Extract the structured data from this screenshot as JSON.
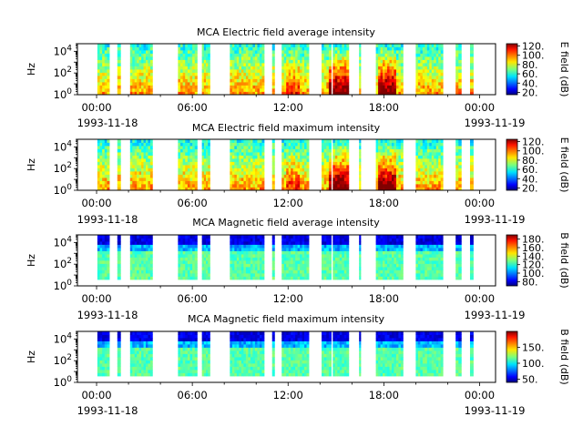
{
  "chart_data": [
    {
      "type": "heatmap",
      "title": "MCA  Electric field average intensity",
      "ylabel": "Hz",
      "y_scale": "log",
      "y_ticks": [
        {
          "base": "10",
          "exp": "0",
          "value": 1
        },
        {
          "base": "10",
          "exp": "2",
          "value": 100
        },
        {
          "base": "10",
          "exp": "4",
          "value": 10000
        }
      ],
      "x_ticks": [
        "00:00",
        "06:00",
        "12:00",
        "18:00",
        "00:00"
      ],
      "x_date_start": "1993-11-18",
      "x_date_end": "1993-11-19",
      "colorbar": {
        "label": "E field (dB)",
        "min": 15,
        "max": 125,
        "ticks": [
          "20.",
          "40.",
          "60.",
          "80.",
          "100.",
          "120."
        ],
        "tick_values": [
          20,
          40,
          60,
          80,
          100,
          120
        ]
      },
      "kind": "electric",
      "seed": 11
    },
    {
      "type": "heatmap",
      "title": "MCA  Electric field maximum intensity",
      "ylabel": "Hz",
      "y_scale": "log",
      "y_ticks": [
        {
          "base": "10",
          "exp": "0",
          "value": 1
        },
        {
          "base": "10",
          "exp": "2",
          "value": 100
        },
        {
          "base": "10",
          "exp": "4",
          "value": 10000
        }
      ],
      "x_ticks": [
        "00:00",
        "06:00",
        "12:00",
        "18:00",
        "00:00"
      ],
      "x_date_start": "1993-11-18",
      "x_date_end": "1993-11-19",
      "colorbar": {
        "label": "E field (dB)",
        "min": 15,
        "max": 125,
        "ticks": [
          "20.",
          "40.",
          "60.",
          "80.",
          "100.",
          "120."
        ],
        "tick_values": [
          20,
          40,
          60,
          80,
          100,
          120
        ]
      },
      "kind": "electric",
      "seed": 23
    },
    {
      "type": "heatmap",
      "title": "MCA  Magnetic field average intensity",
      "ylabel": "Hz",
      "y_scale": "log",
      "y_ticks": [
        {
          "base": "10",
          "exp": "0",
          "value": 1
        },
        {
          "base": "10",
          "exp": "2",
          "value": 100
        },
        {
          "base": "10",
          "exp": "4",
          "value": 10000
        }
      ],
      "x_ticks": [
        "00:00",
        "06:00",
        "12:00",
        "18:00",
        "00:00"
      ],
      "x_date_start": "1993-11-18",
      "x_date_end": "1993-11-19",
      "colorbar": {
        "label": "B field (dB)",
        "min": 70,
        "max": 190,
        "ticks": [
          "80.",
          "100.",
          "120.",
          "140.",
          "160.",
          "180."
        ],
        "tick_values": [
          80,
          100,
          120,
          140,
          160,
          180
        ]
      },
      "kind": "magnetic",
      "seed": 37
    },
    {
      "type": "heatmap",
      "title": "MCA  Magnetic field maximum intensity",
      "ylabel": "Hz",
      "y_scale": "log",
      "y_ticks": [
        {
          "base": "10",
          "exp": "0",
          "value": 1
        },
        {
          "base": "10",
          "exp": "2",
          "value": 100
        },
        {
          "base": "10",
          "exp": "4",
          "value": 10000
        }
      ],
      "x_ticks": [
        "00:00",
        "06:00",
        "12:00",
        "18:00",
        "00:00"
      ],
      "x_date_start": "1993-11-18",
      "x_date_end": "1993-11-19",
      "colorbar": {
        "label": "B field (dB)",
        "min": 40,
        "max": 200,
        "ticks": [
          "50.",
          "100.",
          "150."
        ],
        "tick_values": [
          50,
          100,
          150
        ]
      },
      "kind": "magnetic",
      "seed": 53
    }
  ],
  "data_intervals_hours": [
    [
      0.05,
      0.8
    ],
    [
      1.3,
      1.5
    ],
    [
      2.1,
      3.5
    ],
    [
      5.1,
      6.3
    ],
    [
      6.6,
      7.1
    ],
    [
      8.35,
      10.5
    ],
    [
      11.0,
      11.15
    ],
    [
      11.6,
      13.3
    ],
    [
      14.1,
      14.7
    ],
    [
      14.8,
      15.8
    ],
    [
      16.45,
      16.55
    ],
    [
      17.5,
      19.2
    ],
    [
      20.0,
      21.7
    ],
    [
      22.5,
      22.85
    ],
    [
      23.4,
      23.6
    ]
  ]
}
